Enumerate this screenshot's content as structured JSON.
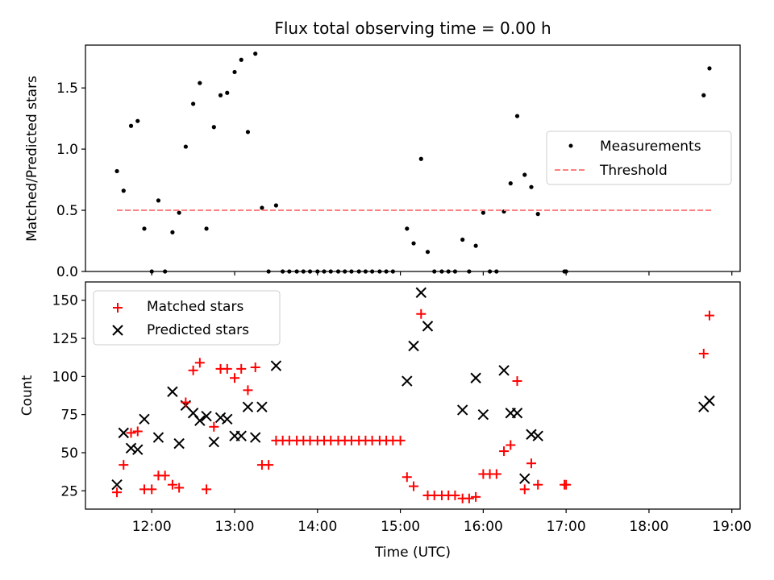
{
  "chart_data": [
    {
      "type": "scatter",
      "title": "Flux total observing time = 0.00 h",
      "ylabel": "Matched/Predicted stars",
      "xlabel": "",
      "xlim": [
        11.2,
        19.1
      ],
      "ylim": [
        0,
        1.85
      ],
      "yticks": [
        "0.0",
        "0.5",
        "1.0",
        "1.5"
      ],
      "ytick_values": [
        0,
        0.5,
        1.0,
        1.5
      ],
      "legend": {
        "placement": "center-right",
        "entries": [
          "Measurements",
          "Threshold"
        ]
      },
      "colors": {
        "measurements": "#000000",
        "threshold": "#ff8080"
      },
      "threshold": {
        "value": 0.5,
        "x_range": [
          11.58,
          18.75
        ]
      },
      "series": [
        {
          "name": "Measurements",
          "points": [
            [
              11.58,
              0.82
            ],
            [
              11.66,
              0.66
            ],
            [
              11.75,
              1.19
            ],
            [
              11.83,
              1.23
            ],
            [
              11.91,
              0.35
            ],
            [
              12.0,
              0.0
            ],
            [
              12.08,
              0.58
            ],
            [
              12.16,
              0.0
            ],
            [
              12.25,
              0.32
            ],
            [
              12.33,
              0.48
            ],
            [
              12.41,
              1.02
            ],
            [
              12.5,
              1.37
            ],
            [
              12.58,
              1.54
            ],
            [
              12.66,
              0.35
            ],
            [
              12.75,
              1.18
            ],
            [
              12.83,
              1.44
            ],
            [
              12.91,
              1.46
            ],
            [
              13.0,
              1.63
            ],
            [
              13.08,
              1.73
            ],
            [
              13.16,
              1.14
            ],
            [
              13.25,
              1.78
            ],
            [
              13.33,
              0.52
            ],
            [
              13.41,
              0.0
            ],
            [
              13.5,
              0.54
            ],
            [
              13.58,
              0.0
            ],
            [
              13.66,
              0.0
            ],
            [
              13.75,
              0.0
            ],
            [
              13.83,
              0.0
            ],
            [
              13.91,
              0.0
            ],
            [
              14.0,
              0.0
            ],
            [
              14.08,
              0.0
            ],
            [
              14.16,
              0.0
            ],
            [
              14.25,
              0.0
            ],
            [
              14.33,
              0.0
            ],
            [
              14.41,
              0.0
            ],
            [
              14.5,
              0.0
            ],
            [
              14.58,
              0.0
            ],
            [
              14.66,
              0.0
            ],
            [
              14.75,
              0.0
            ],
            [
              14.83,
              0.0
            ],
            [
              14.91,
              0.0
            ],
            [
              15.08,
              0.35
            ],
            [
              15.16,
              0.23
            ],
            [
              15.25,
              0.92
            ],
            [
              15.33,
              0.16
            ],
            [
              15.41,
              0.0
            ],
            [
              15.5,
              0.0
            ],
            [
              15.58,
              0.0
            ],
            [
              15.66,
              0.0
            ],
            [
              15.75,
              0.26
            ],
            [
              15.83,
              0.0
            ],
            [
              15.91,
              0.21
            ],
            [
              16.0,
              0.48
            ],
            [
              16.08,
              0.0
            ],
            [
              16.16,
              0.0
            ],
            [
              16.25,
              0.49
            ],
            [
              16.33,
              0.72
            ],
            [
              16.41,
              1.27
            ],
            [
              16.5,
              0.79
            ],
            [
              16.58,
              0.69
            ],
            [
              16.66,
              0.47
            ],
            [
              16.98,
              0.0
            ],
            [
              17.0,
              0.0
            ],
            [
              18.66,
              1.44
            ],
            [
              18.73,
              1.66
            ]
          ]
        }
      ]
    },
    {
      "type": "scatter",
      "title": "",
      "xlabel": "Time (UTC)",
      "ylabel": "Count",
      "xlim": [
        11.2,
        19.1
      ],
      "ylim": [
        13,
        162
      ],
      "xticks": [
        "12:00",
        "13:00",
        "14:00",
        "15:00",
        "16:00",
        "17:00",
        "18:00",
        "19:00"
      ],
      "xtick_values": [
        12,
        13,
        14,
        15,
        16,
        17,
        18,
        19
      ],
      "yticks": [
        "25",
        "50",
        "75",
        "100",
        "125",
        "150"
      ],
      "ytick_values": [
        25,
        50,
        75,
        100,
        125,
        150
      ],
      "legend": {
        "placement": "upper-left",
        "entries": [
          "Matched stars",
          "Predicted stars"
        ]
      },
      "colors": {
        "matched": "#ff0000",
        "predicted": "#000000"
      },
      "series": [
        {
          "name": "Matched stars",
          "points": [
            [
              11.58,
              24
            ],
            [
              11.66,
              42
            ],
            [
              11.75,
              63
            ],
            [
              11.83,
              64
            ],
            [
              11.91,
              26
            ],
            [
              12.0,
              26
            ],
            [
              12.08,
              35
            ],
            [
              12.16,
              35
            ],
            [
              12.25,
              29
            ],
            [
              12.33,
              27
            ],
            [
              12.41,
              83
            ],
            [
              12.5,
              104
            ],
            [
              12.58,
              109
            ],
            [
              12.66,
              26
            ],
            [
              12.75,
              67
            ],
            [
              12.83,
              105
            ],
            [
              12.91,
              105
            ],
            [
              13.0,
              99
            ],
            [
              13.08,
              105
            ],
            [
              13.16,
              91
            ],
            [
              13.25,
              106
            ],
            [
              13.33,
              42
            ],
            [
              13.41,
              42
            ],
            [
              13.5,
              58
            ],
            [
              13.58,
              58
            ],
            [
              13.66,
              58
            ],
            [
              13.75,
              58
            ],
            [
              13.83,
              58
            ],
            [
              13.91,
              58
            ],
            [
              14.0,
              58
            ],
            [
              14.08,
              58
            ],
            [
              14.16,
              58
            ],
            [
              14.25,
              58
            ],
            [
              14.33,
              58
            ],
            [
              14.41,
              58
            ],
            [
              14.5,
              58
            ],
            [
              14.58,
              58
            ],
            [
              14.66,
              58
            ],
            [
              14.75,
              58
            ],
            [
              14.83,
              58
            ],
            [
              14.91,
              58
            ],
            [
              15.0,
              58
            ],
            [
              15.08,
              34
            ],
            [
              15.16,
              28
            ],
            [
              15.25,
              141
            ],
            [
              15.33,
              22
            ],
            [
              15.41,
              22
            ],
            [
              15.5,
              22
            ],
            [
              15.58,
              22
            ],
            [
              15.66,
              22
            ],
            [
              15.75,
              20
            ],
            [
              15.83,
              20
            ],
            [
              15.91,
              21
            ],
            [
              16.0,
              36
            ],
            [
              16.08,
              36
            ],
            [
              16.16,
              36
            ],
            [
              16.25,
              51
            ],
            [
              16.33,
              55
            ],
            [
              16.41,
              97
            ],
            [
              16.5,
              26
            ],
            [
              16.58,
              43
            ],
            [
              16.66,
              29
            ],
            [
              16.98,
              29
            ],
            [
              17.0,
              29
            ],
            [
              18.66,
              115
            ],
            [
              18.73,
              140
            ]
          ]
        },
        {
          "name": "Predicted stars",
          "points": [
            [
              11.58,
              29
            ],
            [
              11.66,
              63
            ],
            [
              11.75,
              53
            ],
            [
              11.83,
              52
            ],
            [
              11.91,
              72
            ],
            [
              12.08,
              60
            ],
            [
              12.25,
              90
            ],
            [
              12.33,
              56
            ],
            [
              12.41,
              81
            ],
            [
              12.5,
              76
            ],
            [
              12.58,
              71
            ],
            [
              12.66,
              74
            ],
            [
              12.75,
              57
            ],
            [
              12.83,
              73
            ],
            [
              12.91,
              72
            ],
            [
              13.0,
              61
            ],
            [
              13.08,
              61
            ],
            [
              13.16,
              80
            ],
            [
              13.25,
              60
            ],
            [
              13.33,
              80
            ],
            [
              13.5,
              107
            ],
            [
              15.08,
              97
            ],
            [
              15.16,
              120
            ],
            [
              15.25,
              155
            ],
            [
              15.33,
              133
            ],
            [
              15.75,
              78
            ],
            [
              15.91,
              99
            ],
            [
              16.0,
              75
            ],
            [
              16.25,
              104
            ],
            [
              16.33,
              76
            ],
            [
              16.41,
              76
            ],
            [
              16.5,
              33
            ],
            [
              16.58,
              62
            ],
            [
              16.66,
              61
            ],
            [
              18.66,
              80
            ],
            [
              18.73,
              84
            ]
          ]
        }
      ]
    }
  ]
}
